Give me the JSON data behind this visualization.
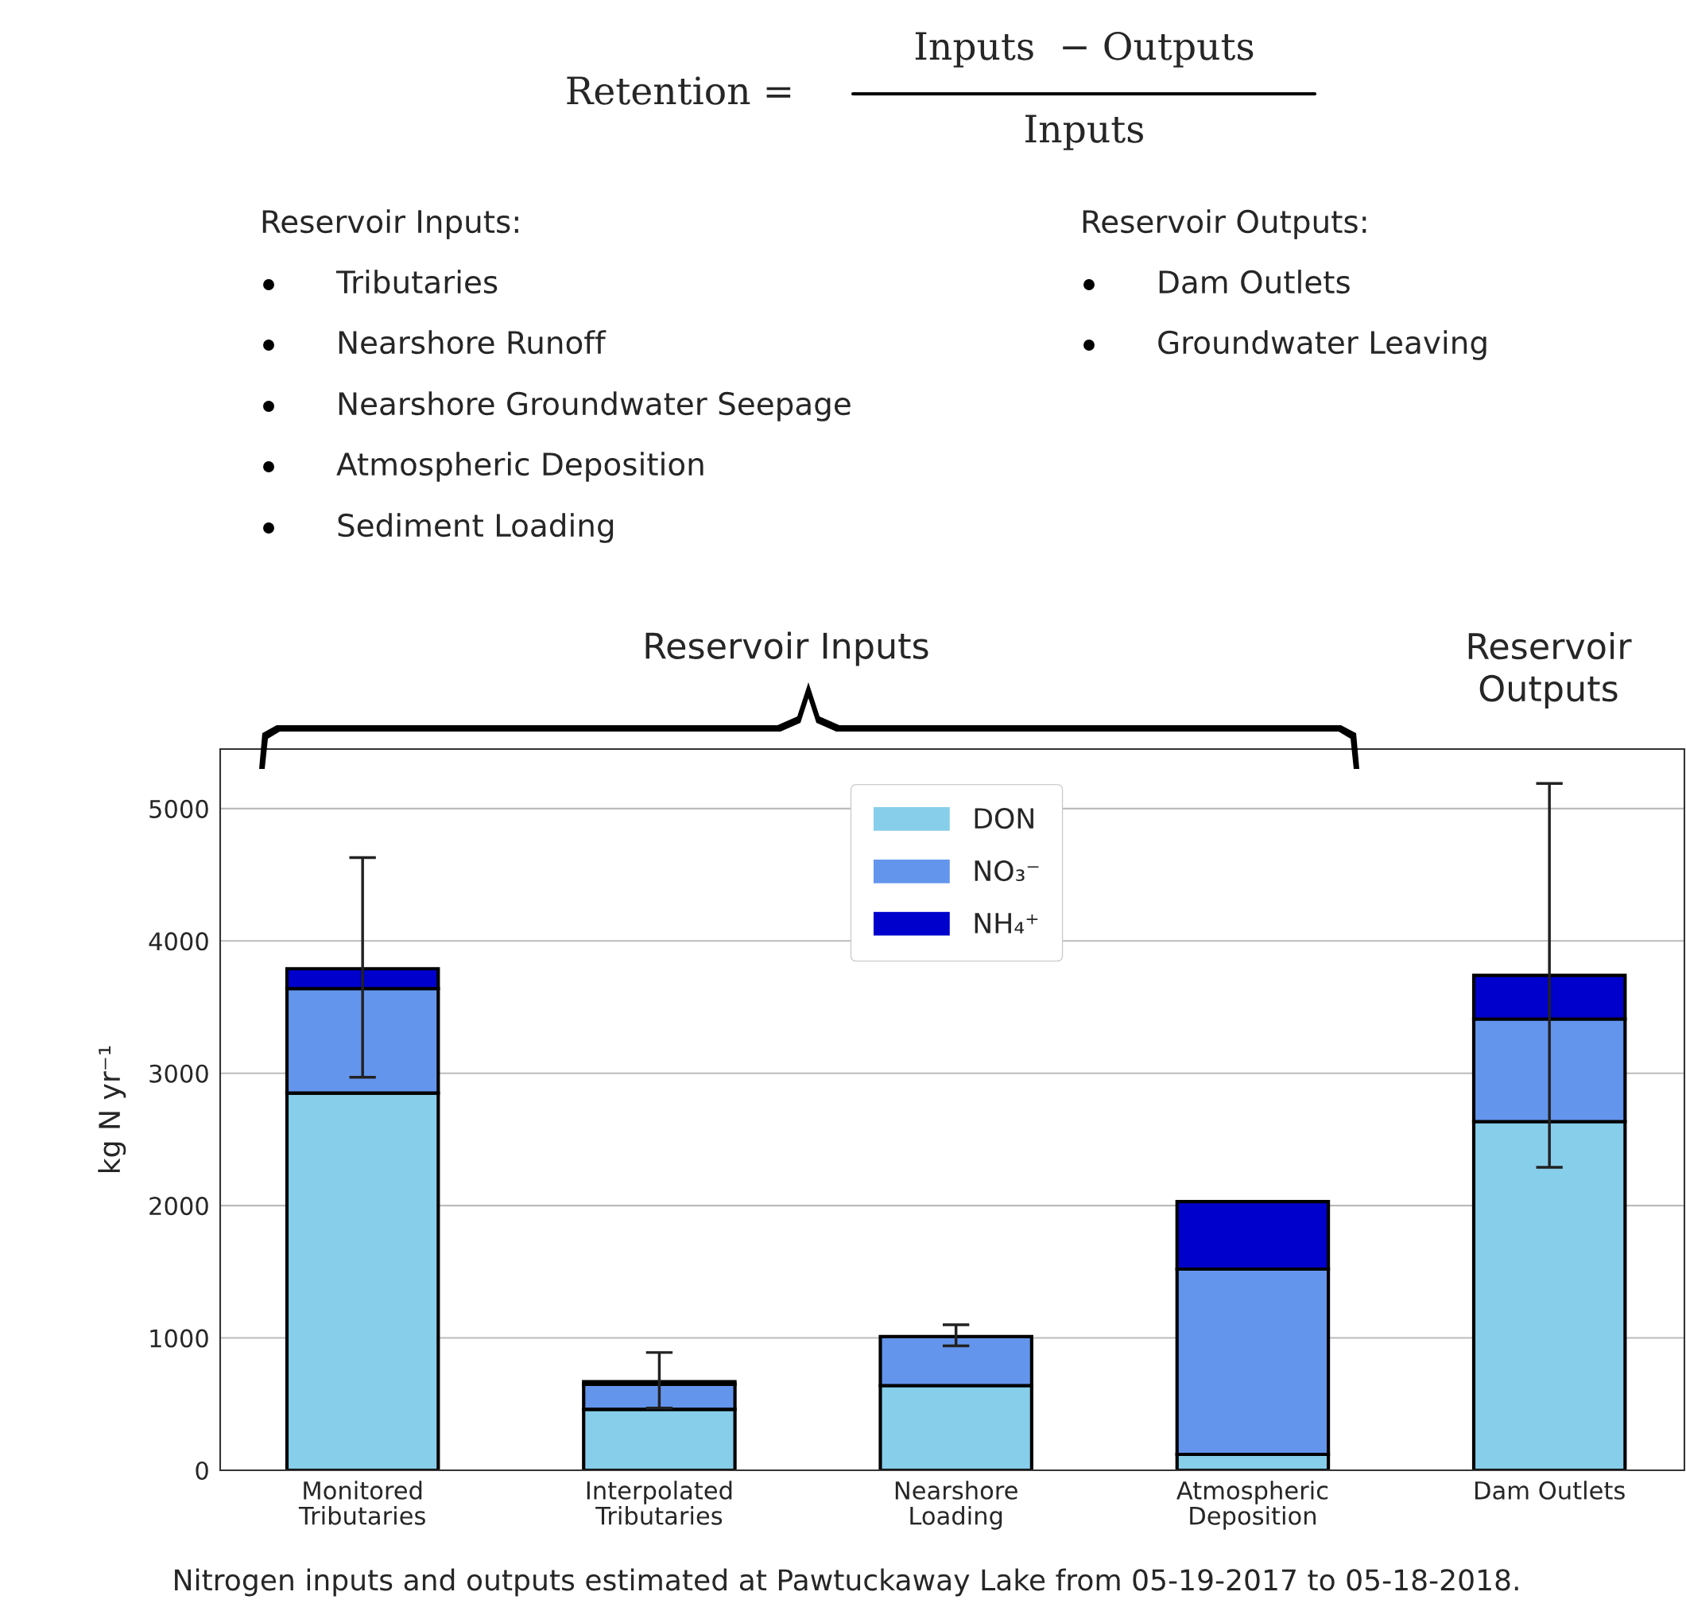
{
  "chart_data": {
    "type": "bar",
    "stacked": true,
    "categories": [
      "Monitored\nTributaries",
      "Interpolated\nTributaries",
      "Nearshore\nLoading",
      "Atmospheric\nDeposition",
      "Dam Outlets"
    ],
    "series": [
      {
        "name": "DON",
        "color": "#87ceeb",
        "values": [
          2850,
          460,
          640,
          120,
          2635
        ]
      },
      {
        "name": "NO₃⁻",
        "color": "#6495ed",
        "values": [
          790,
          190,
          370,
          1400,
          775
        ]
      },
      {
        "name": "NH₄⁺",
        "color": "#0000cd",
        "values": [
          150,
          20,
          0,
          510,
          330
        ],
        "errors": [
          [
            2970,
            4630
          ],
          [
            470,
            890
          ],
          [
            940,
            1100
          ],
          null,
          [
            2290,
            5190
          ]
        ]
      }
    ],
    "ylabel": "kg N yr⁻¹",
    "ylim": [
      0,
      5450
    ],
    "yticks": [
      0,
      1000,
      2000,
      3000,
      4000,
      5000
    ],
    "grid": "y",
    "legend": "top",
    "annotations": [
      "Retention =",
      "Inputs  − Outputs",
      "Inputs",
      "Reservoir Inputs:",
      "Tributaries",
      "Nearshore Runoff",
      "Nearshore Groundwater Seepage",
      "Atmospheric Deposition",
      "Sediment Loading",
      "Reservoir Outputs:",
      "Dam Outlets",
      "Groundwater Leaving",
      "Reservoir Inputs",
      "Reservoir\nOutputs",
      "Nitrogen inputs and outputs estimated at Pawtuckaway Lake from 05-19-2017 to 05-18-2018."
    ]
  }
}
